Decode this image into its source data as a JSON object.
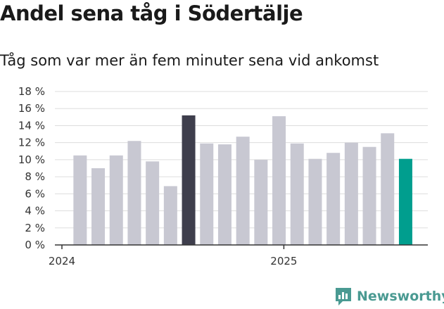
{
  "title": "Andel sena tåg i Södertälje",
  "subtitle": "Tåg som var mer än fem minuter sena vid ankomst",
  "brand": "Newsworthy",
  "colors": {
    "bar": "#c8c8d2",
    "highlight_max": "#3e3e4c",
    "highlight_latest": "#009e8e",
    "grid": "#dddddd",
    "axis": "#333333",
    "brand": "#4a9a92"
  },
  "chart_data": {
    "type": "bar",
    "title": "Andel sena tåg i Södertälje",
    "subtitle": "Tåg som var mer än fem minuter sena vid ankomst",
    "xlabel": "",
    "ylabel": "",
    "ylim": [
      0,
      18
    ],
    "yticks": [
      0,
      2,
      4,
      6,
      8,
      10,
      12,
      14,
      16,
      18
    ],
    "ytick_labels": [
      "0 %",
      "2 %",
      "4 %",
      "6 %",
      "8 %",
      "10 %",
      "12 %",
      "14 %",
      "16 %",
      "18 %"
    ],
    "x_tick_labels": [
      {
        "label": "2024",
        "at_index": 0
      },
      {
        "label": "2025",
        "at_index": 12
      }
    ],
    "grid": true,
    "values": [
      10.5,
      9.0,
      10.5,
      12.2,
      9.8,
      6.9,
      15.2,
      11.9,
      11.8,
      12.7,
      10.0,
      15.1,
      11.9,
      10.1,
      10.8,
      12.0,
      11.5,
      13.1,
      10.1
    ],
    "highlight": {
      "max_index": 6,
      "latest_index": 18
    }
  }
}
